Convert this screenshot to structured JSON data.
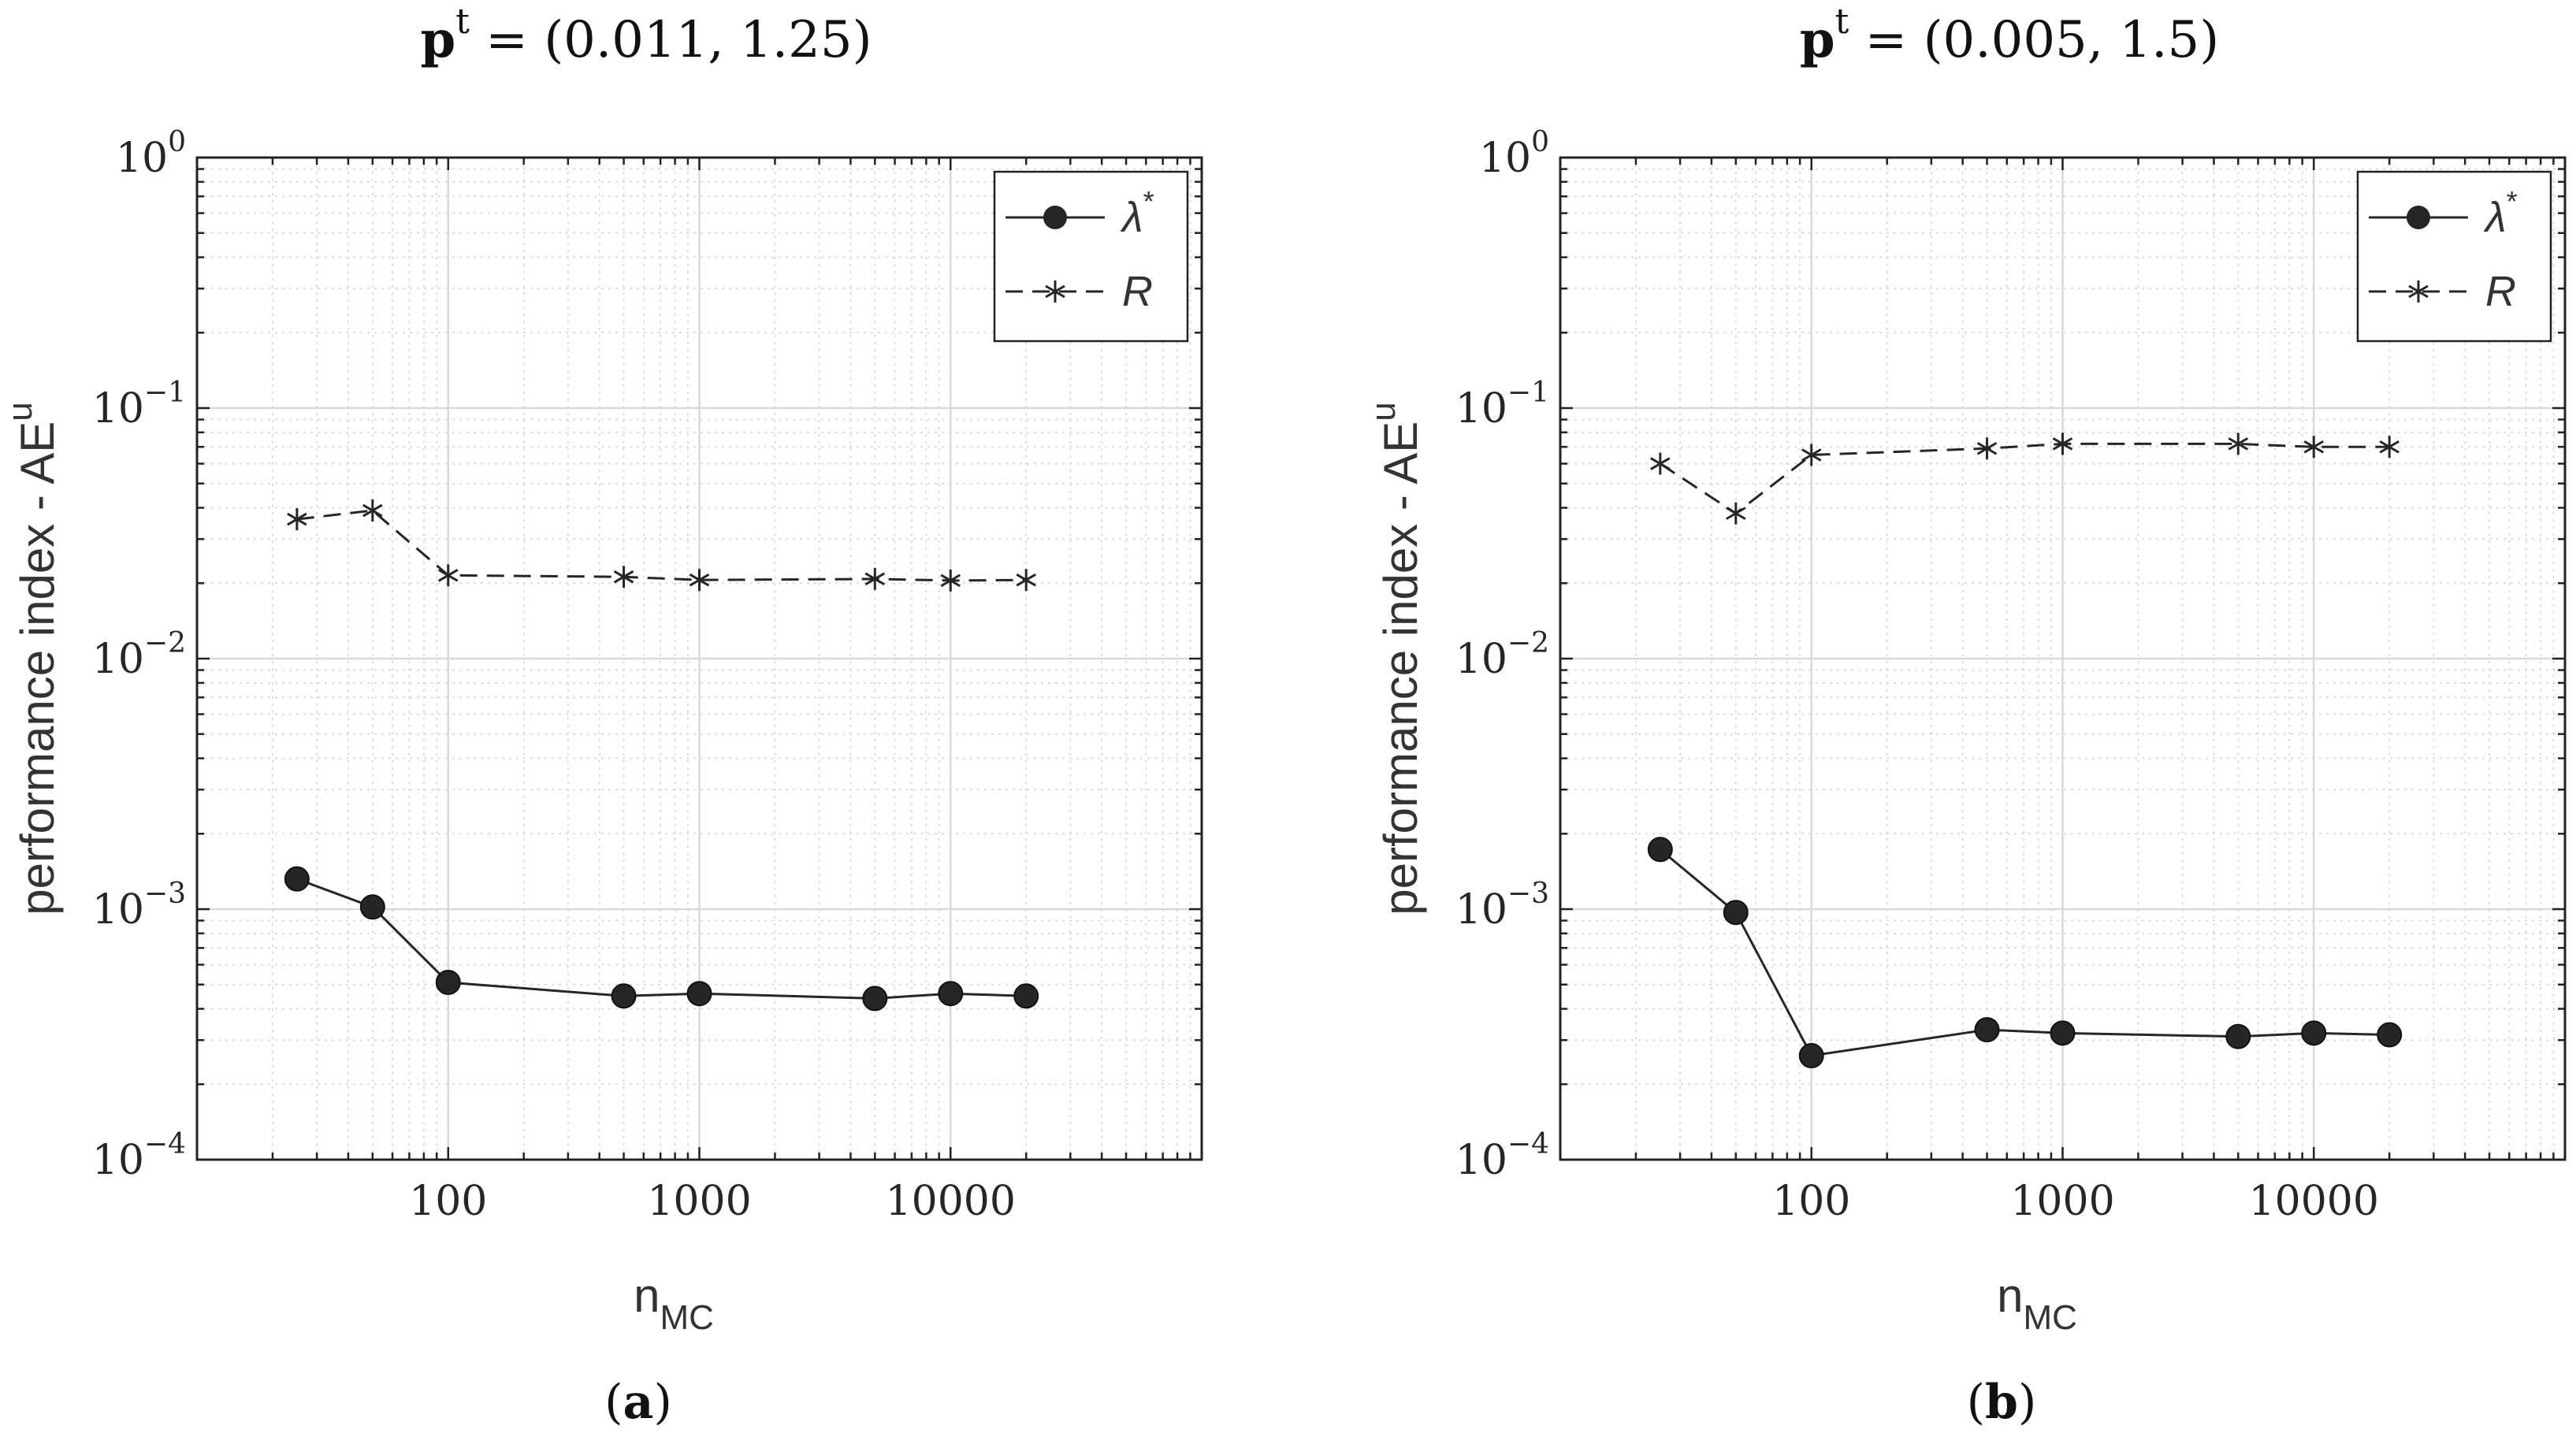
{
  "chart_data": [
    {
      "type": "line",
      "panel": "(a)",
      "panel_letter": "a",
      "title": "p^t = (0.011, 1.25)",
      "title_symbol": "p",
      "title_superscript": "t",
      "title_rest": " = (0.011, 1.25)",
      "xlabel": "n",
      "xlabel_sub": "MC",
      "ylabel": "performance index - AE",
      "ylabel_sup": "u",
      "xscale": "log",
      "yscale": "log",
      "xlim": [
        10,
        100000
      ],
      "ylim": [
        0.0001,
        1
      ],
      "grid": true,
      "minor_grid": true,
      "legend_position": "top-right",
      "xticks": [
        {
          "value": 100,
          "label": "100"
        },
        {
          "value": 1000,
          "label": "1000"
        },
        {
          "value": 10000,
          "label": "10000"
        }
      ],
      "yticks": [
        {
          "value": 0.0001,
          "base": "10",
          "exp": "−4"
        },
        {
          "value": 0.001,
          "base": "10",
          "exp": "−3"
        },
        {
          "value": 0.01,
          "base": "10",
          "exp": "−2"
        },
        {
          "value": 0.1,
          "base": "10",
          "exp": "−1"
        },
        {
          "value": 1,
          "base": "10",
          "exp": "0"
        }
      ],
      "series": [
        {
          "name": "λ*",
          "legend_symbol": "λ",
          "legend_sup": "*",
          "marker": "circle",
          "linestyle": "solid",
          "x": [
            25,
            50,
            100,
            500,
            1000,
            5000,
            10000,
            20000
          ],
          "values": [
            0.00132,
            0.00102,
            0.00051,
            0.00045,
            0.00046,
            0.00044,
            0.00046,
            0.00045
          ]
        },
        {
          "name": "R",
          "legend_symbol": "R",
          "legend_sup": "",
          "marker": "asterisk",
          "linestyle": "dashed",
          "x": [
            25,
            50,
            100,
            500,
            1000,
            5000,
            10000,
            20000
          ],
          "values": [
            0.036,
            0.039,
            0.0215,
            0.0212,
            0.0206,
            0.0208,
            0.0205,
            0.0206
          ]
        }
      ]
    },
    {
      "type": "line",
      "panel": "(b)",
      "panel_letter": "b",
      "title": "p^t = (0.005, 1.5)",
      "title_symbol": "p",
      "title_superscript": "t",
      "title_rest": " = (0.005, 1.5)",
      "xlabel": "n",
      "xlabel_sub": "MC",
      "ylabel": "performance index - AE",
      "ylabel_sup": "u",
      "xscale": "log",
      "yscale": "log",
      "xlim": [
        10,
        100000
      ],
      "ylim": [
        0.0001,
        1
      ],
      "grid": true,
      "minor_grid": true,
      "legend_position": "top-right",
      "xticks": [
        {
          "value": 100,
          "label": "100"
        },
        {
          "value": 1000,
          "label": "1000"
        },
        {
          "value": 10000,
          "label": "10000"
        }
      ],
      "yticks": [
        {
          "value": 0.0001,
          "base": "10",
          "exp": "−4"
        },
        {
          "value": 0.001,
          "base": "10",
          "exp": "−3"
        },
        {
          "value": 0.01,
          "base": "10",
          "exp": "−2"
        },
        {
          "value": 0.1,
          "base": "10",
          "exp": "−1"
        },
        {
          "value": 1,
          "base": "10",
          "exp": "0"
        }
      ],
      "series": [
        {
          "name": "λ*",
          "legend_symbol": "λ",
          "legend_sup": "*",
          "marker": "circle",
          "linestyle": "solid",
          "x": [
            25,
            50,
            100,
            500,
            1000,
            5000,
            10000,
            20000
          ],
          "values": [
            0.00173,
            0.00097,
            0.00026,
            0.00033,
            0.00032,
            0.00031,
            0.00032,
            0.000315
          ]
        },
        {
          "name": "R",
          "legend_symbol": "R",
          "legend_sup": "",
          "marker": "asterisk",
          "linestyle": "dashed",
          "x": [
            25,
            50,
            100,
            500,
            1000,
            5000,
            10000,
            20000
          ],
          "values": [
            0.06,
            0.038,
            0.065,
            0.069,
            0.072,
            0.072,
            0.07,
            0.07
          ]
        }
      ]
    }
  ]
}
